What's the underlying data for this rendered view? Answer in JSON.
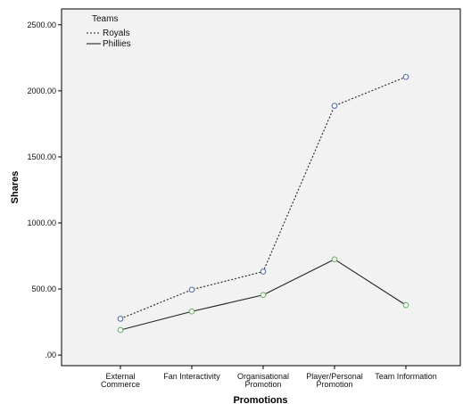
{
  "chart_data": {
    "type": "line",
    "title": "",
    "xlabel": "Promotions",
    "ylabel": "Shares",
    "categories": [
      [
        "External",
        "Commerce"
      ],
      [
        "Fan Interactivity"
      ],
      [
        "Organisational",
        "Promotion"
      ],
      [
        "Player/Personal",
        "Promotion"
      ],
      [
        "Team Information"
      ]
    ],
    "y_ticks": [
      ".00",
      "500.00",
      "1000.00",
      "1500.00",
      "2000.00",
      "2500.00"
    ],
    "ylim": [
      -80,
      2620
    ],
    "grid": false,
    "plot_background": "#f2f2f2",
    "legend": {
      "title": "Teams",
      "placement": "top-left",
      "entries": [
        "Royals",
        "Phillies"
      ]
    },
    "series": [
      {
        "name": "Royals",
        "values": [
          275,
          495,
          632,
          1887,
          2105
        ],
        "line_style": "dotted",
        "line_color": "#222222",
        "marker_color": "#5b6fa8"
      },
      {
        "name": "Phillies",
        "values": [
          190,
          330,
          455,
          725,
          378
        ],
        "line_style": "solid",
        "line_color": "#222222",
        "marker_color": "#6bb36b"
      }
    ]
  }
}
